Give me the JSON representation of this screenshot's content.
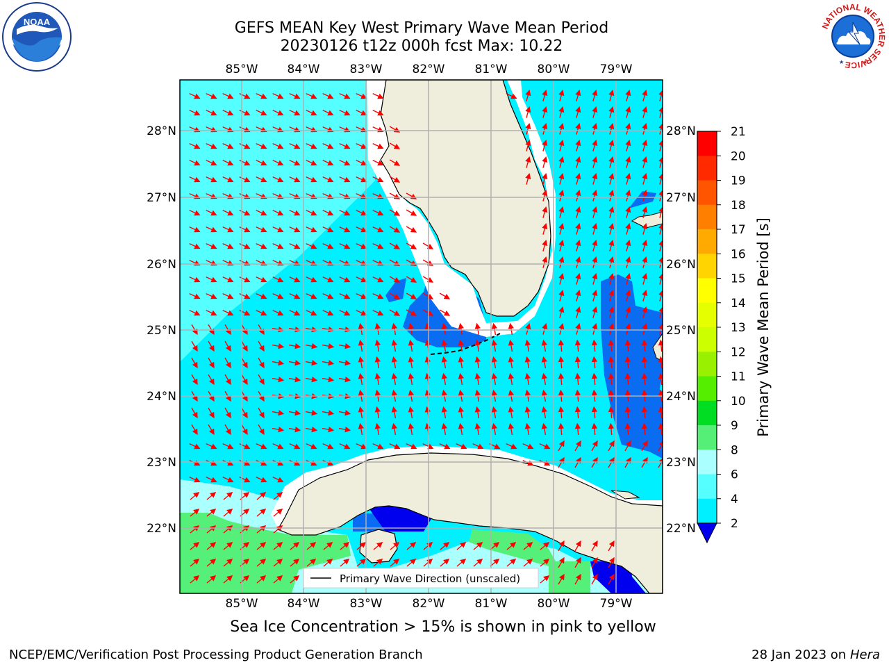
{
  "title": {
    "line1": "GEFS MEAN Key West Primary Wave Mean Period",
    "line2": "20230126 t12z 000h fcst   Max: 10.22"
  },
  "map": {
    "lon_labels": [
      "85°W",
      "84°W",
      "83°W",
      "82°W",
      "81°W",
      "80°W",
      "79°W"
    ],
    "lat_labels": [
      "28°N",
      "27°N",
      "26°N",
      "25°N",
      "24°N",
      "23°N",
      "22°N"
    ],
    "legend_label": "Primary Wave Direction (unscaled)",
    "arrow_color": "#ff0000",
    "land_color": "#efeddc",
    "ocean_colors": {
      "2-4": "#0a6cf0",
      "4-6": "#00f0ff",
      "6-8": "#55ffff",
      "8-9": "#aaffff",
      "9-10": "#55f07a",
      "deep": "#0000ee"
    }
  },
  "colorbar": {
    "label": "Primary Wave Mean Period [s]",
    "ticks": [
      "21",
      "20",
      "19",
      "18",
      "17",
      "16",
      "15",
      "14",
      "13",
      "12",
      "11",
      "10",
      "9",
      "8",
      "6",
      "4",
      "2"
    ],
    "colors": [
      "#ff0000",
      "#ff2a00",
      "#ff5500",
      "#ff8000",
      "#ffaa00",
      "#ffd400",
      "#ffff00",
      "#e5ff00",
      "#ccff00",
      "#99f000",
      "#55ee00",
      "#00dd22",
      "#55ee77",
      "#aaffff",
      "#55ffff",
      "#00f0ff",
      "#0a6cf0",
      "#0000ee"
    ]
  },
  "subtitle": "Sea Ice Concentration > 15% is shown in pink to yellow",
  "footer": {
    "left": "NCEP/EMC/Verification Post Processing Product Generation Branch",
    "right_date": "28 Jan 2023 on ",
    "right_machine": "Hera"
  },
  "logos": {
    "noaa_text": "NOAA",
    "nws_ring_text": "NATIONAL WEATHER SERVICE"
  }
}
